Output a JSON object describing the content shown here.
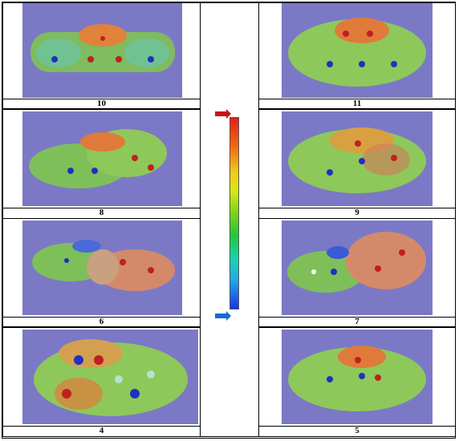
{
  "panels": [
    {
      "label": "10"
    },
    {
      "label": "11"
    },
    {
      "label": "8"
    },
    {
      "label": "9"
    },
    {
      "label": "6"
    },
    {
      "label": "7"
    },
    {
      "label": "4"
    },
    {
      "label": "5"
    }
  ],
  "colors": {
    "background": "#7b79c6",
    "scale_top": "#e61e1e",
    "scale_bottom": "#1a34e6"
  }
}
